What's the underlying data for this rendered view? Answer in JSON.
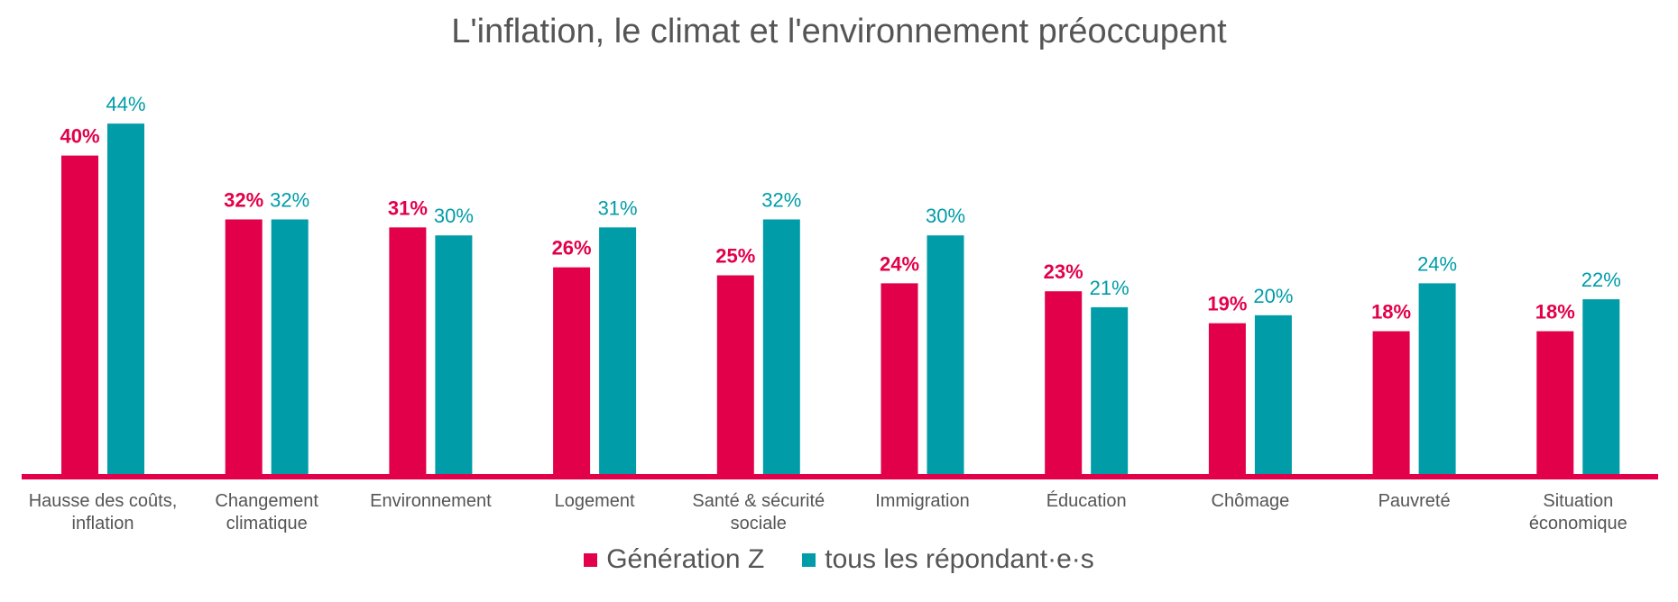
{
  "chart_data": {
    "type": "bar",
    "title": "L'inflation, le climat et l'environnement préoccupent",
    "xlabel": "",
    "ylabel": "",
    "ylim": [
      0,
      44
    ],
    "grid": false,
    "legend": "bottom-center",
    "categories": [
      [
        "Hausse des coûts,",
        "inflation"
      ],
      [
        "Changement",
        "climatique"
      ],
      [
        "Environnement"
      ],
      [
        "Logement"
      ],
      [
        "Santé & sécurité",
        "sociale"
      ],
      [
        "Immigration"
      ],
      [
        "Éducation"
      ],
      [
        "Chômage"
      ],
      [
        "Pauvreté"
      ],
      [
        "Situation",
        "économique"
      ]
    ],
    "series": [
      {
        "name": "Génération Z",
        "color": "#E3004A",
        "values": [
          40,
          32,
          31,
          26,
          25,
          24,
          23,
          19,
          18,
          18
        ],
        "labels": [
          "40%",
          "32%",
          "31%",
          "26%",
          "25%",
          "24%",
          "23%",
          "19%",
          "18%",
          "18%"
        ]
      },
      {
        "name": "tous les répondant·e·s",
        "color": "#009CA8",
        "values": [
          44,
          32,
          30,
          31,
          32,
          30,
          21,
          20,
          24,
          22
        ],
        "labels": [
          "44%",
          "32%",
          "30%",
          "31%",
          "32%",
          "30%",
          "21%",
          "20%",
          "24%",
          "22%"
        ]
      }
    ],
    "axis_color": "#E3004A"
  }
}
